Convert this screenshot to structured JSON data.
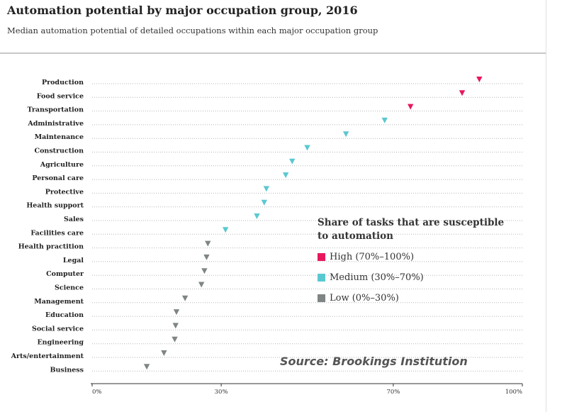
{
  "title": "Automation potential by major occupation group, 2016",
  "subtitle": "Median automation potential of detailed occupations within each major occupation group",
  "legend": {
    "title": "Share of tasks that are susceptible to automation",
    "items": [
      {
        "label": "High (70%–100%)",
        "color": "#e8175d"
      },
      {
        "label": "Medium (30%–70%)",
        "color": "#5bc8d0"
      },
      {
        "label": "Low (0%–30%)",
        "color": "#7f8585"
      }
    ]
  },
  "source": "Source: Brookings Institution",
  "chart_data": {
    "type": "scatter",
    "title": "Automation potential by major occupation group, 2016",
    "xlabel": "",
    "ylabel": "",
    "xlim": [
      0,
      100
    ],
    "xticks": [
      "0%",
      "30%",
      "70%",
      "100%"
    ],
    "xtick_values": [
      0,
      30,
      70,
      100
    ],
    "marker": "triangle-down",
    "categories": [
      "Production",
      "Food service",
      "Transportation",
      "Administrative",
      "Maintenance",
      "Construction",
      "Agriculture",
      "Personal care",
      "Protective",
      "Health support",
      "Sales",
      "Facilities care",
      "Health practition",
      "Legal",
      "Computer",
      "Science",
      "Management",
      "Education",
      "Social service",
      "Engineering",
      "Arts/entertainment",
      "Business"
    ],
    "values": [
      90,
      86,
      74,
      68,
      59,
      50,
      46.5,
      45,
      40.5,
      40,
      38.3,
      31,
      26.9,
      26.6,
      26.1,
      25.4,
      21.6,
      19.6,
      19.4,
      19.2,
      16.7,
      12.7
    ],
    "levels": [
      "high",
      "high",
      "high",
      "medium",
      "medium",
      "medium",
      "medium",
      "medium",
      "medium",
      "medium",
      "medium",
      "medium",
      "low",
      "low",
      "low",
      "low",
      "low",
      "low",
      "low",
      "low",
      "low",
      "low"
    ],
    "colors": {
      "high": "#e8175d",
      "medium": "#5bc8d0",
      "low": "#7f8585"
    },
    "grid": true,
    "legend_position": "center-right"
  }
}
